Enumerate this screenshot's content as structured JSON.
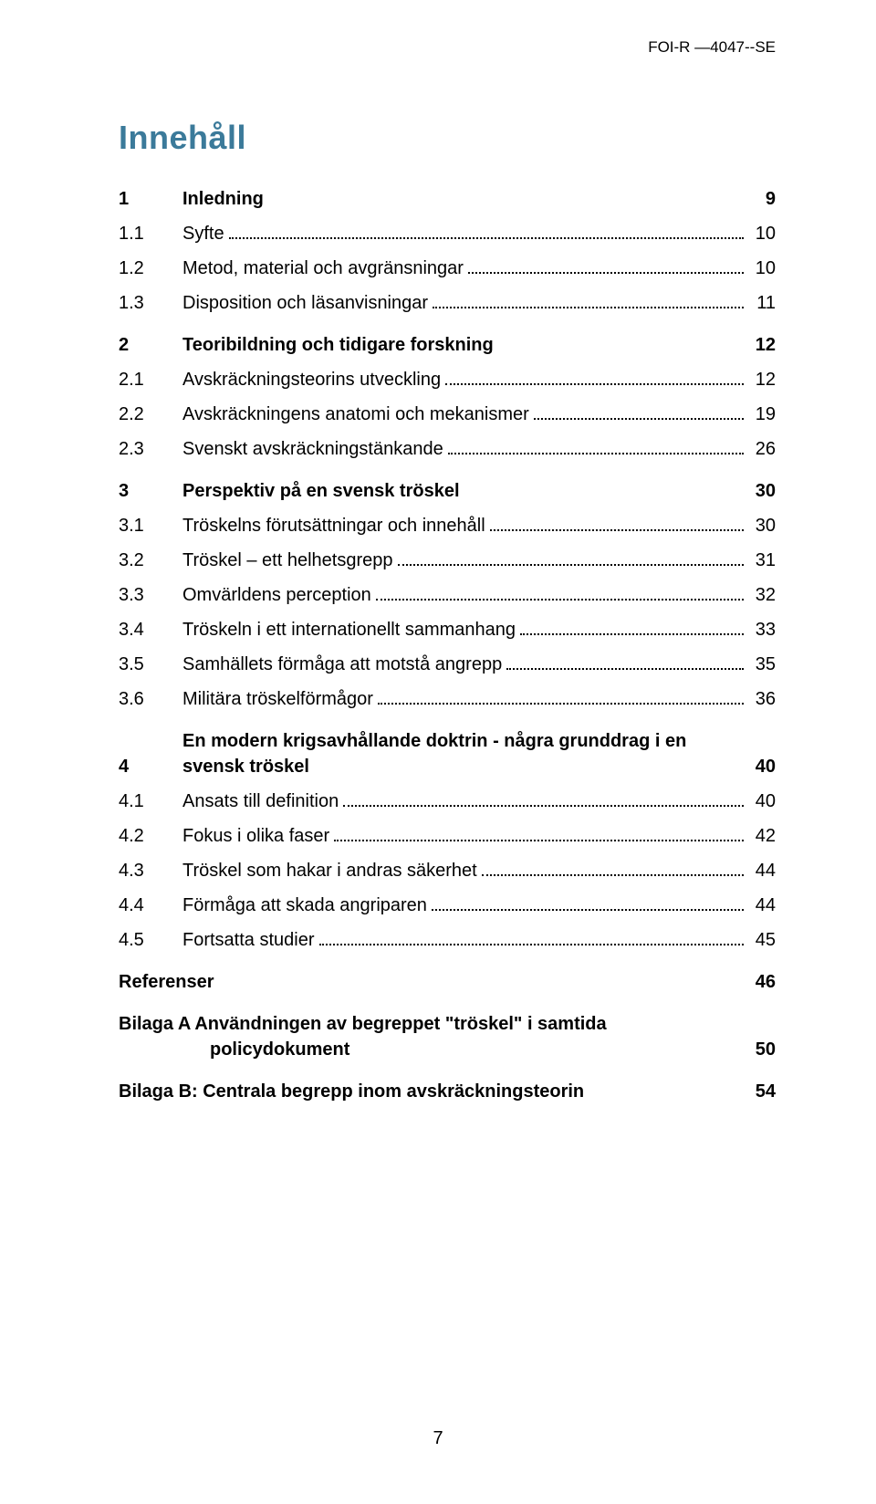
{
  "header_code": "FOI-R —4047--SE",
  "toc_title": "Innehåll",
  "entries": [
    {
      "type": "section",
      "num": "1",
      "label": "Inledning",
      "page": "9"
    },
    {
      "type": "subsection",
      "num": "1.1",
      "label": "Syfte",
      "page": "10"
    },
    {
      "type": "subsection",
      "num": "1.2",
      "label": "Metod, material och avgränsningar",
      "page": "10"
    },
    {
      "type": "subsection",
      "num": "1.3",
      "label": "Disposition och läsanvisningar",
      "page": "11"
    },
    {
      "type": "section",
      "num": "2",
      "label": "Teoribildning och tidigare forskning",
      "page": "12"
    },
    {
      "type": "subsection",
      "num": "2.1",
      "label": "Avskräckningsteorins utveckling",
      "page": "12"
    },
    {
      "type": "subsection",
      "num": "2.2",
      "label": "Avskräckningens anatomi och mekanismer",
      "page": "19"
    },
    {
      "type": "subsection",
      "num": "2.3",
      "label": "Svenskt avskräckningstänkande",
      "page": "26"
    },
    {
      "type": "section",
      "num": "3",
      "label": "Perspektiv på en svensk tröskel",
      "page": "30"
    },
    {
      "type": "subsection",
      "num": "3.1",
      "label": "Tröskelns förutsättningar och innehåll",
      "page": "30"
    },
    {
      "type": "subsection",
      "num": "3.2",
      "label": "Tröskel – ett helhetsgrepp",
      "page": "31"
    },
    {
      "type": "subsection",
      "num": "3.3",
      "label": "Omvärldens perception",
      "page": "32"
    },
    {
      "type": "subsection",
      "num": "3.4",
      "label": "Tröskeln i ett internationellt sammanhang",
      "page": "33"
    },
    {
      "type": "subsection",
      "num": "3.5",
      "label": "Samhällets förmåga att motstå angrepp",
      "page": "35"
    },
    {
      "type": "subsection",
      "num": "3.6",
      "label": "Militära tröskelförmågor",
      "page": "36"
    },
    {
      "type": "section2",
      "num": "4",
      "label1": "En modern krigsavhållande doktrin - några grunddrag i en",
      "label2": "svensk tröskel",
      "page": "40"
    },
    {
      "type": "subsection",
      "num": "4.1",
      "label": "Ansats till definition",
      "page": "40"
    },
    {
      "type": "subsection",
      "num": "4.2",
      "label": "Fokus i olika faser",
      "page": "42"
    },
    {
      "type": "subsection",
      "num": "4.3",
      "label": "Tröskel som hakar i andras säkerhet",
      "page": "44"
    },
    {
      "type": "subsection",
      "num": "4.4",
      "label": "Förmåga att skada angriparen",
      "page": "44"
    },
    {
      "type": "subsection",
      "num": "4.5",
      "label": "Fortsatta studier",
      "page": "45"
    },
    {
      "type": "section",
      "num": "",
      "label": "Referenser",
      "page": "46",
      "noindent": true
    },
    {
      "type": "appendix2",
      "label1": "Bilaga A Användningen av begreppet \"tröskel\" i samtida",
      "label2": "policydokument",
      "page": "50"
    },
    {
      "type": "section",
      "num": "",
      "label": "Bilaga B: Centrala begrepp inom avskräckningsteorin",
      "page": "54",
      "noindent": true
    }
  ],
  "page_number": "7",
  "colors": {
    "title_color": "#3b7a9a",
    "text_color": "#000000",
    "background": "#ffffff"
  },
  "typography": {
    "title_fontsize_pt": 26,
    "body_fontsize_pt": 15,
    "font_family": "Arial"
  }
}
